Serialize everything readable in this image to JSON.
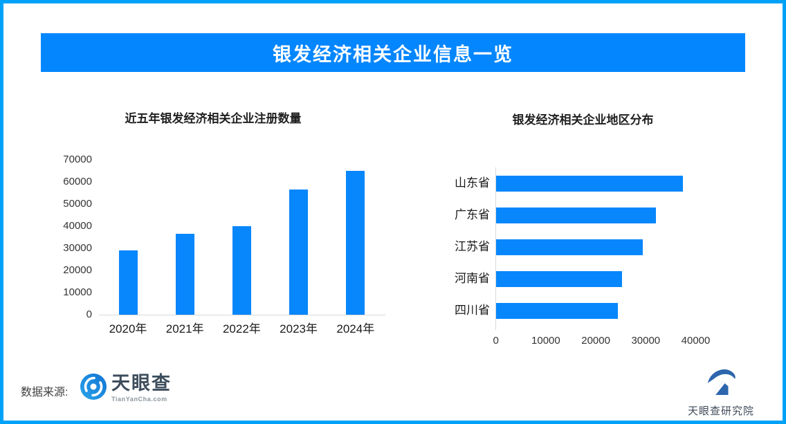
{
  "page": {
    "banner": {
      "title": "银发经济相关企业信息一览"
    },
    "colors": {
      "border": "#00a2f8",
      "banner_bg": "#0486fe",
      "bar": "#0787fb",
      "axis_line": "#d9d9d9"
    },
    "footer": {
      "source_label": "数据来源:",
      "tianyancha": {
        "name": "天眼查",
        "domain": "TianYanCha.com",
        "icon": "tianyancha-eye-icon"
      },
      "research": {
        "name": "天眼查研究院",
        "icon": "tianyancha-research-icon"
      }
    }
  },
  "chart_data": [
    {
      "type": "bar",
      "title": "近五年银发经济相关企业注册数量",
      "categories": [
        "2020年",
        "2021年",
        "2022年",
        "2023年",
        "2024年"
      ],
      "values": [
        29000,
        36500,
        40000,
        56500,
        65000
      ],
      "xlabel": "",
      "ylabel": "",
      "ylim": [
        0,
        70000
      ],
      "yticks": [
        0,
        10000,
        20000,
        30000,
        40000,
        50000,
        60000,
        70000
      ],
      "grid": false,
      "legend": "none",
      "bar_color": "#0787fb"
    },
    {
      "type": "bar-horizontal",
      "title": "银发经济相关企业地区分布",
      "categories": [
        "山东省",
        "广东省",
        "江苏省",
        "河南省",
        "四川省"
      ],
      "values": [
        37400,
        32000,
        29300,
        25200,
        24400
      ],
      "xlabel": "",
      "ylabel": "",
      "xlim": [
        0,
        40000
      ],
      "xticks": [
        0,
        10000,
        20000,
        30000,
        40000
      ],
      "grid": false,
      "legend": "none",
      "bar_color": "#0787fb"
    }
  ]
}
